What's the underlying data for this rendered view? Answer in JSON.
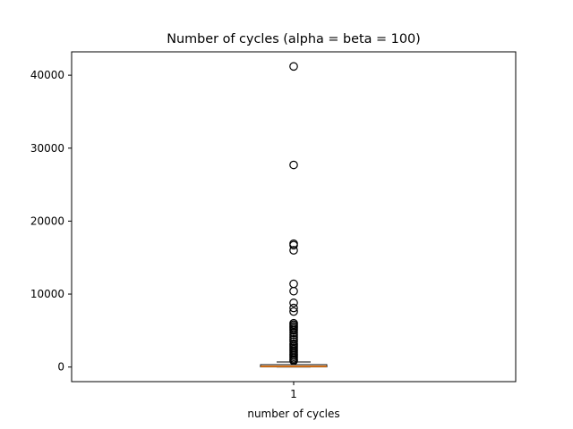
{
  "chart_data": {
    "type": "box",
    "title": "Number of cycles (alpha = beta = 100)",
    "xlabel": "number of cycles",
    "ylabel": "",
    "categories": [
      "1"
    ],
    "ylim": [
      -2000,
      43200
    ],
    "yticks": [
      0,
      10000,
      20000,
      30000,
      40000
    ],
    "grid": false,
    "legend": "none",
    "box": {
      "q1": 20,
      "median": 100,
      "q3": 320,
      "whisker_low": 0,
      "whisker_high": 700
    },
    "outliers": [
      41200,
      27700,
      16900,
      16700,
      16000,
      11400,
      10400,
      8800,
      8100,
      7600,
      6000,
      5800,
      5600,
      5400,
      5200,
      5000,
      4700,
      4400,
      4100,
      3800,
      3500,
      3200,
      3000,
      2800,
      2600,
      2400,
      2200,
      2000,
      1800,
      1600,
      1400,
      1200,
      1000,
      850
    ],
    "colors": {
      "median": "#ff7f0e",
      "box": "#000000",
      "outlier": "#000000"
    }
  }
}
